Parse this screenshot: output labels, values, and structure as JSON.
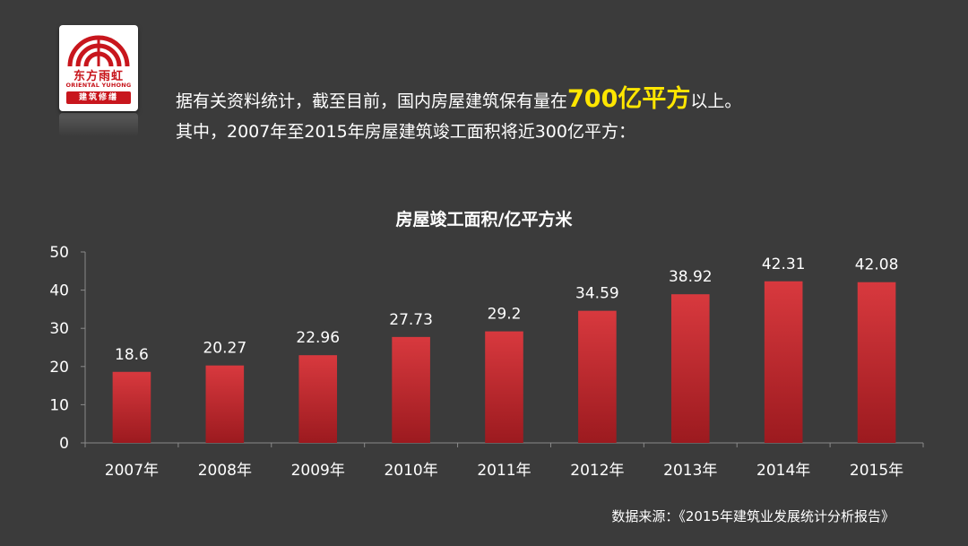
{
  "logo": {
    "name_cn": "东方雨虹",
    "name_en": "ORIENTAL YUHONG",
    "subtitle": "建筑修缮",
    "brand_color": "#c8161d"
  },
  "intro": {
    "line1_before": "据有关资料统计，截至目前，国内房屋建筑保有量在",
    "line1_highlight": "700亿平方",
    "line1_after": "以上。",
    "line2": "其中，2007年至2015年房屋建筑竣工面积将近300亿平方：",
    "highlight_color": "#ffe600"
  },
  "chart_data": {
    "type": "bar",
    "title": "房屋竣工面积/亿平方米",
    "categories": [
      "2007年",
      "2008年",
      "2009年",
      "2010年",
      "2011年",
      "2012年",
      "2013年",
      "2014年",
      "2015年"
    ],
    "values": [
      18.6,
      20.27,
      22.96,
      27.73,
      29.2,
      34.59,
      38.92,
      42.31,
      42.08
    ],
    "value_labels": [
      "18.6",
      "20.27",
      "22.96",
      "27.73",
      "29.2",
      "34.59",
      "38.92",
      "42.31",
      "42.08"
    ],
    "yticks": [
      "0",
      "10",
      "20",
      "30",
      "40",
      "50"
    ],
    "ylim": [
      0,
      50
    ],
    "grid": false,
    "legend": "none",
    "bar_color": "#c9252b"
  },
  "source": {
    "text": "数据来源：《2015年建筑业发展统计分析报告》"
  }
}
